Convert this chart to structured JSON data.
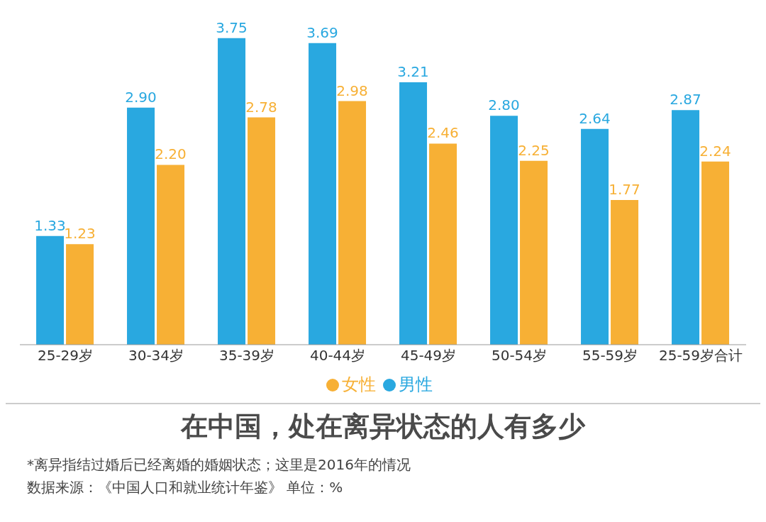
{
  "chart_data": {
    "type": "bar",
    "title": "在中国，处在离异状态的人有多少",
    "categories": [
      "25-29岁",
      "30-34岁",
      "35-39岁",
      "40-44岁",
      "45-49岁",
      "50-54岁",
      "55-59岁",
      "25-59岁合计"
    ],
    "series": [
      {
        "name": "男性",
        "color": "#29a8e0",
        "values": [
          1.33,
          2.9,
          3.75,
          3.69,
          3.21,
          2.8,
          2.64,
          2.87
        ],
        "value_labels": [
          "1.33",
          "2.90",
          "3.75",
          "3.69",
          "3.21",
          "2.80",
          "2.64",
          "2.87"
        ]
      },
      {
        "name": "女性",
        "color": "#f7b035",
        "values": [
          1.23,
          2.2,
          2.78,
          2.98,
          2.46,
          2.25,
          1.77,
          2.24
        ],
        "value_labels": [
          "1.23",
          "2.20",
          "2.78",
          "2.98",
          "2.46",
          "2.25",
          "1.77",
          "2.24"
        ]
      }
    ],
    "legend": "bottom",
    "annotations": [
      "*离异指结过婚后已经离婚的婚姻状态；这里是2016年的情况",
      "数据来源：《中国人口和就业统计年鉴》  单位：%"
    ]
  }
}
